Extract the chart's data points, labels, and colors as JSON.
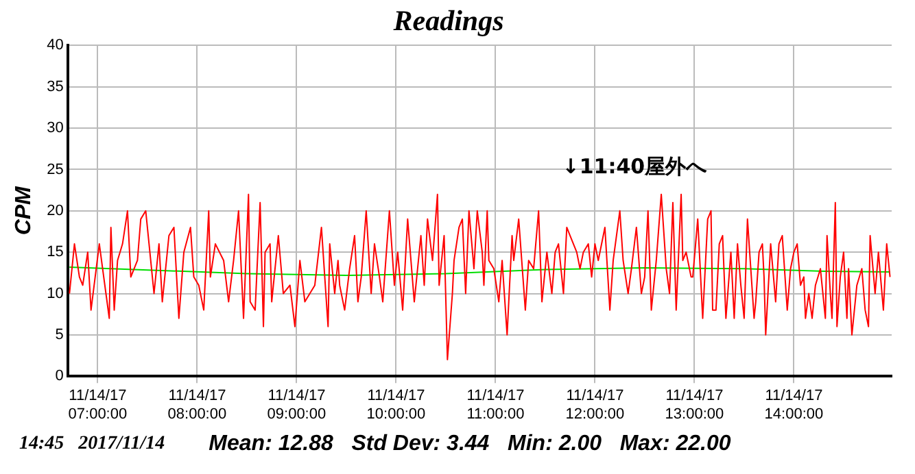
{
  "chart_data": {
    "type": "line",
    "title": "Readings",
    "ylabel": "CPM",
    "xlim": [
      "2017-11-14T06:42",
      "2017-11-14T14:59"
    ],
    "xticks": [
      {
        "value": "2017-11-14T07:00",
        "label": "11/14/17\n07:00:00"
      },
      {
        "value": "2017-11-14T08:00",
        "label": "11/14/17\n08:00:00"
      },
      {
        "value": "2017-11-14T09:00",
        "label": "11/14/17\n09:00:00"
      },
      {
        "value": "2017-11-14T10:00",
        "label": "11/14/17\n10:00:00"
      },
      {
        "value": "2017-11-14T11:00",
        "label": "11/14/17\n11:00:00"
      },
      {
        "value": "2017-11-14T12:00",
        "label": "11/14/17\n12:00:00"
      },
      {
        "value": "2017-11-14T13:00",
        "label": "11/14/17\n13:00:00"
      },
      {
        "value": "2017-11-14T14:00",
        "label": "11/14/17\n14:00:00"
      }
    ],
    "ylim": [
      0,
      40
    ],
    "yticks": [
      0,
      5,
      10,
      15,
      20,
      25,
      30,
      35,
      40
    ],
    "grid": true,
    "series": [
      {
        "color": "#ff0000",
        "x": [
          "2017-11-14T06:43",
          "2017-11-14T06:46",
          "2017-11-14T06:49",
          "2017-11-14T06:51",
          "2017-11-14T06:54",
          "2017-11-14T06:56",
          "2017-11-14T07:01",
          "2017-11-14T07:05",
          "2017-11-14T07:07",
          "2017-11-14T07:08",
          "2017-11-14T07:10",
          "2017-11-14T07:12",
          "2017-11-14T07:15",
          "2017-11-14T07:18",
          "2017-11-14T07:20",
          "2017-11-14T07:24",
          "2017-11-14T07:26",
          "2017-11-14T07:29",
          "2017-11-14T07:32",
          "2017-11-14T07:34",
          "2017-11-14T07:37",
          "2017-11-14T07:39",
          "2017-11-14T07:43",
          "2017-11-14T07:46",
          "2017-11-14T07:49",
          "2017-11-14T07:52",
          "2017-11-14T07:56",
          "2017-11-14T07:58",
          "2017-11-14T08:01",
          "2017-11-14T08:04",
          "2017-11-14T08:07",
          "2017-11-14T08:08",
          "2017-11-14T08:11",
          "2017-11-14T08:16",
          "2017-11-14T08:19",
          "2017-11-14T08:22",
          "2017-11-14T08:25",
          "2017-11-14T08:28",
          "2017-11-14T08:31",
          "2017-11-14T08:32",
          "2017-11-14T08:35",
          "2017-11-14T08:38",
          "2017-11-14T08:40",
          "2017-11-14T08:41",
          "2017-11-14T08:44",
          "2017-11-14T08:45",
          "2017-11-14T08:49",
          "2017-11-14T08:52",
          "2017-11-14T08:56",
          "2017-11-14T08:59",
          "2017-11-14T09:02",
          "2017-11-14T09:05",
          "2017-11-14T09:11",
          "2017-11-14T09:15",
          "2017-11-14T09:19",
          "2017-11-14T09:20",
          "2017-11-14T09:23",
          "2017-11-14T09:25",
          "2017-11-14T09:26",
          "2017-11-14T09:29",
          "2017-11-14T09:32",
          "2017-11-14T09:35",
          "2017-11-14T09:37",
          "2017-11-14T09:39",
          "2017-11-14T09:42",
          "2017-11-14T09:45",
          "2017-11-14T09:47",
          "2017-11-14T09:50",
          "2017-11-14T09:52",
          "2017-11-14T09:56",
          "2017-11-14T09:59",
          "2017-11-14T10:01",
          "2017-11-14T10:04",
          "2017-11-14T10:07",
          "2017-11-14T10:09",
          "2017-11-14T10:11",
          "2017-11-14T10:15",
          "2017-11-14T10:17",
          "2017-11-14T10:19",
          "2017-11-14T10:22",
          "2017-11-14T10:25",
          "2017-11-14T10:26",
          "2017-11-14T10:29",
          "2017-11-14T10:31",
          "2017-11-14T10:34",
          "2017-11-14T10:35",
          "2017-11-14T10:38",
          "2017-11-14T10:40",
          "2017-11-14T10:42",
          "2017-11-14T10:44",
          "2017-11-14T10:47",
          "2017-11-14T10:49",
          "2017-11-14T10:52",
          "2017-11-14T10:53",
          "2017-11-14T10:55",
          "2017-11-14T10:56",
          "2017-11-14T10:59",
          "2017-11-14T11:02",
          "2017-11-14T11:04",
          "2017-11-14T11:07",
          "2017-11-14T11:10",
          "2017-11-14T11:11",
          "2017-11-14T11:14",
          "2017-11-14T11:18",
          "2017-11-14T11:20",
          "2017-11-14T11:23",
          "2017-11-14T11:26",
          "2017-11-14T11:28",
          "2017-11-14T11:31",
          "2017-11-14T11:34",
          "2017-11-14T11:36",
          "2017-11-14T11:38",
          "2017-11-14T11:41",
          "2017-11-14T11:43",
          "2017-11-14T11:45",
          "2017-11-14T11:49",
          "2017-11-14T11:51",
          "2017-11-14T11:53",
          "2017-11-14T11:56",
          "2017-11-14T11:58",
          "2017-11-14T12:00",
          "2017-11-14T12:02",
          "2017-11-14T12:06",
          "2017-11-14T12:09",
          "2017-11-14T12:11",
          "2017-11-14T12:15",
          "2017-11-14T12:17",
          "2017-11-14T12:20",
          "2017-11-14T12:22",
          "2017-11-14T12:25",
          "2017-11-14T12:28",
          "2017-11-14T12:30",
          "2017-11-14T12:32",
          "2017-11-14T12:34",
          "2017-11-14T12:37",
          "2017-11-14T12:40",
          "2017-11-14T12:43",
          "2017-11-14T12:45",
          "2017-11-14T12:47",
          "2017-11-14T12:49",
          "2017-11-14T12:52",
          "2017-11-14T12:53",
          "2017-11-14T12:55",
          "2017-11-14T12:58",
          "2017-11-14T12:59",
          "2017-11-14T13:02",
          "2017-11-14T13:05",
          "2017-11-14T13:08",
          "2017-11-14T13:10",
          "2017-11-14T13:11",
          "2017-11-14T13:13",
          "2017-11-14T13:15",
          "2017-11-14T13:17",
          "2017-11-14T13:19",
          "2017-11-14T13:22",
          "2017-11-14T13:24",
          "2017-11-14T13:26",
          "2017-11-14T13:28",
          "2017-11-14T13:30",
          "2017-11-14T13:32",
          "2017-11-14T13:34",
          "2017-11-14T13:36",
          "2017-11-14T13:37",
          "2017-11-14T13:39",
          "2017-11-14T13:41",
          "2017-11-14T13:42",
          "2017-11-14T13:43",
          "2017-11-14T13:46",
          "2017-11-14T13:49",
          "2017-11-14T13:51",
          "2017-11-14T13:53",
          "2017-11-14T13:56",
          "2017-11-14T13:58",
          "2017-11-14T14:00",
          "2017-11-14T14:02",
          "2017-11-14T14:04",
          "2017-11-14T14:06",
          "2017-11-14T14:07",
          "2017-11-14T14:09",
          "2017-11-14T14:11",
          "2017-11-14T14:13",
          "2017-11-14T14:16",
          "2017-11-14T14:19",
          "2017-11-14T14:20",
          "2017-11-14T14:22",
          "2017-11-14T14:23",
          "2017-11-14T14:25",
          "2017-11-14T14:26",
          "2017-11-14T14:28",
          "2017-11-14T14:30",
          "2017-11-14T14:32",
          "2017-11-14T14:33",
          "2017-11-14T14:35",
          "2017-11-14T14:37",
          "2017-11-14T14:38",
          "2017-11-14T14:41",
          "2017-11-14T14:43",
          "2017-11-14T14:45",
          "2017-11-14T14:46",
          "2017-11-14T14:49",
          "2017-11-14T14:51",
          "2017-11-14T14:54",
          "2017-11-14T14:56",
          "2017-11-14T14:58"
        ],
        "values": [
          10,
          16,
          12,
          11,
          15,
          8,
          16,
          10,
          7,
          18,
          8,
          14,
          16,
          20,
          12,
          14,
          19,
          20,
          14,
          10,
          16,
          9,
          17,
          18,
          7,
          15,
          18,
          12,
          11,
          8,
          20,
          12,
          16,
          14,
          9,
          14,
          20,
          7,
          22,
          9,
          8,
          21,
          6,
          15,
          16,
          9,
          17,
          10,
          11,
          6,
          14,
          9,
          11,
          18,
          6,
          16,
          10,
          14,
          11,
          8,
          13,
          17,
          9,
          12,
          20,
          10,
          16,
          12,
          9,
          20,
          11,
          15,
          8,
          19,
          14,
          9,
          17,
          11,
          19,
          14,
          22,
          11,
          17,
          2,
          10,
          14,
          18,
          19,
          10,
          20,
          13,
          20,
          15,
          11,
          20,
          14,
          13,
          9,
          14,
          5,
          17,
          14,
          19,
          8,
          14,
          13,
          20,
          9,
          15,
          10,
          15,
          16,
          10,
          18,
          17,
          15,
          13,
          15,
          16,
          12,
          16,
          14,
          18,
          8,
          14,
          20,
          14,
          10,
          13,
          18,
          10,
          12,
          20,
          8,
          14,
          22,
          13,
          10,
          21,
          8,
          22,
          14,
          15,
          12,
          12,
          19,
          7,
          19,
          20,
          8,
          8,
          16,
          17,
          7,
          15,
          7,
          16,
          11,
          7,
          19,
          13,
          7,
          9,
          15,
          16,
          12,
          5,
          16,
          9,
          16,
          17,
          8,
          13,
          15,
          16,
          11,
          12,
          7,
          10,
          7,
          11,
          13,
          7,
          17,
          10,
          7,
          21,
          6,
          12,
          15,
          7,
          13,
          5,
          9,
          11,
          13,
          8,
          6,
          17,
          10,
          15,
          8,
          16,
          12
        ]
      },
      {
        "color": "#00dd00",
        "x": [
          "2017-11-14T06:43",
          "2017-11-14T08:30",
          "2017-11-14T09:30",
          "2017-11-14T10:30",
          "2017-11-14T11:30",
          "2017-11-14T12:30",
          "2017-11-14T13:30",
          "2017-11-14T14:18",
          "2017-11-14T14:58"
        ],
        "values": [
          13.2,
          12.4,
          12.2,
          12.4,
          12.9,
          13.1,
          13,
          12.7,
          12.6
        ]
      }
    ],
    "annotations": [
      "↓11:40屋外へ",
      "14:45   2017/11/14",
      "Mean: 12.88   Std Dev: 3.44   Min: 2.00   Max: 22.00"
    ]
  }
}
